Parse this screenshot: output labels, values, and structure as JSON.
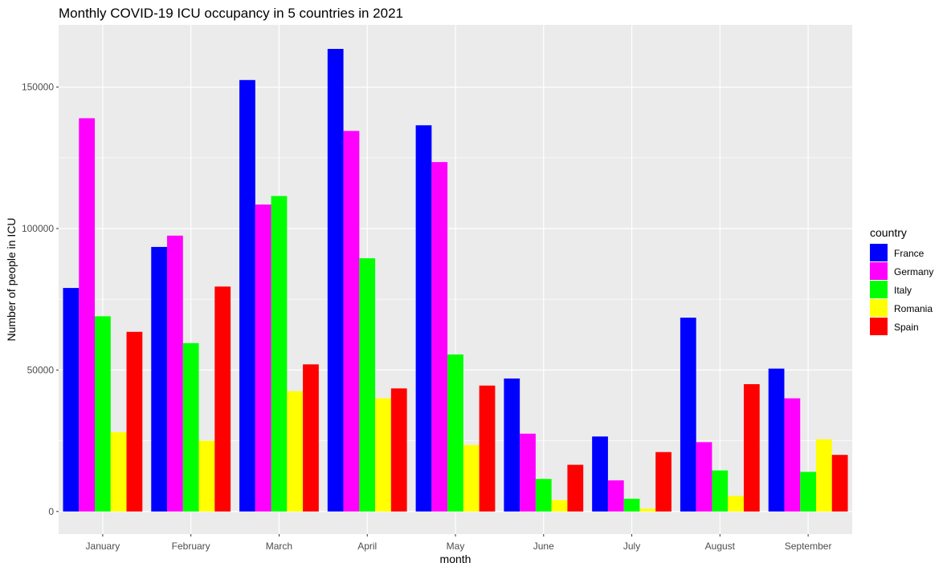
{
  "chart_data": {
    "type": "bar",
    "title": "Monthly COVID-19 ICU occupancy in 5 countries in 2021",
    "xlabel": "month",
    "ylabel": "Number of people in ICU",
    "categories": [
      "January",
      "February",
      "March",
      "April",
      "May",
      "June",
      "July",
      "August",
      "September"
    ],
    "ylim": [
      -8000,
      172000
    ],
    "yticks": [
      0,
      50000,
      100000,
      150000
    ],
    "grid": true,
    "legend": {
      "title": "country",
      "placement": "right"
    },
    "series": [
      {
        "name": "France",
        "color": "#0000FF",
        "values": [
          79000,
          93500,
          152500,
          163500,
          136500,
          47000,
          26500,
          68500,
          50500
        ]
      },
      {
        "name": "Germany",
        "color": "#FF00FF",
        "values": [
          139000,
          97500,
          108500,
          134500,
          123500,
          27500,
          11000,
          24500,
          40000
        ]
      },
      {
        "name": "Italy",
        "color": "#00FF00",
        "values": [
          69000,
          59500,
          111500,
          89500,
          55500,
          11500,
          4500,
          14500,
          14000
        ]
      },
      {
        "name": "Romania",
        "color": "#FFFF00",
        "values": [
          28000,
          25000,
          42500,
          40000,
          23500,
          4000,
          1000,
          5500,
          25500
        ]
      },
      {
        "name": "Spain",
        "color": "#FF0000",
        "values": [
          63500,
          79500,
          52000,
          43500,
          44500,
          16500,
          21000,
          45000,
          20000
        ]
      }
    ]
  }
}
